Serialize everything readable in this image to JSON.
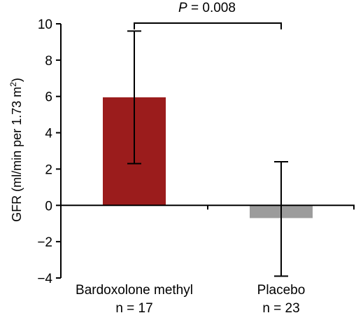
{
  "chart_data": {
    "type": "bar",
    "ylabel": "GFR (ml/min per 1.73 m²)",
    "ylabel_main": "GFR (ml/min per 1.73 m",
    "ylabel_sup": "2",
    "ylabel_close": ")",
    "ylim": [
      -4,
      10
    ],
    "yticks": [
      -4,
      -2,
      0,
      2,
      4,
      6,
      8,
      10
    ],
    "ytick_labels": [
      "−4",
      "−2",
      "0",
      "2",
      "4",
      "6",
      "8",
      "10"
    ],
    "grid": false,
    "bars": [
      {
        "label": "Bardoxolone methyl",
        "n_label": "n = 17",
        "value": 5.95,
        "err_low": 2.3,
        "err_high": 9.6,
        "color": "#9b1c1c"
      },
      {
        "label": "Placebo",
        "n_label": "n = 23",
        "value": -0.7,
        "err_low": -3.9,
        "err_high": 2.4,
        "color": "#9c9c9c"
      }
    ],
    "significance": {
      "p_symbol": "P",
      "p_text": " = 0.008",
      "between": [
        "Bardoxolone methyl",
        "Placebo"
      ]
    }
  }
}
